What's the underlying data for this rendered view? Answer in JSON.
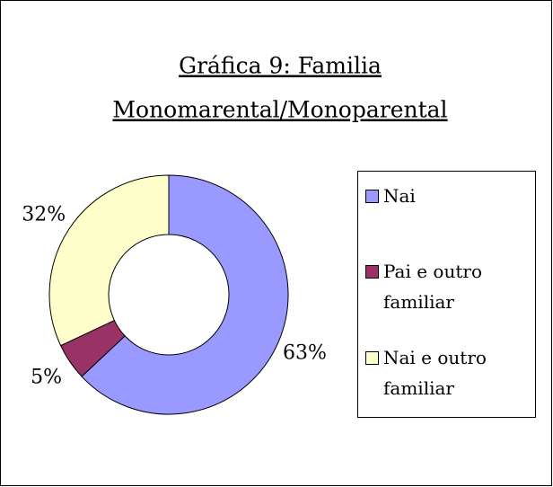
{
  "chart_data": {
    "type": "doughnut",
    "title": [
      "Gráfica 9: Familia",
      "Monomarental/Monoparental"
    ],
    "categories": [
      "Nai",
      "Pai e outro familiar",
      "Nai e outro familiar"
    ],
    "values": [
      63,
      5,
      32
    ],
    "value_labels": [
      "63%",
      "5%",
      "32%"
    ],
    "colors": [
      "#9999ff",
      "#993366",
      "#ffffcc"
    ],
    "legend": "right"
  }
}
